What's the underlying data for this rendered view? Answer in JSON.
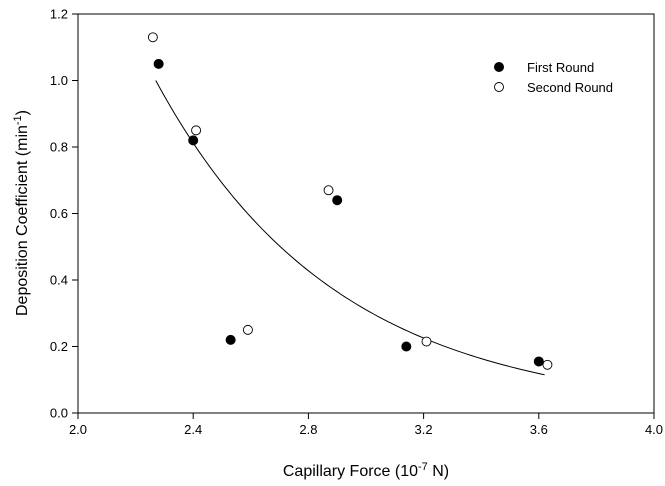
{
  "chart_data": {
    "type": "scatter",
    "xlabel": "Capillary Force (10",
    "xlabel_sup": "-7",
    "xlabel_tail": " N)",
    "ylabel": "Deposition Coefficient (min",
    "ylabel_sup": "-1",
    "ylabel_tail": ")",
    "xlim": [
      2.0,
      4.0
    ],
    "ylim": [
      0.0,
      1.2
    ],
    "xticks": [
      "2.0",
      "2.4",
      "2.8",
      "3.2",
      "3.6",
      "4.0"
    ],
    "yticks": [
      "0.0",
      "0.2",
      "0.4",
      "0.6",
      "0.8",
      "1.0",
      "1.2"
    ],
    "grid": false,
    "legend_position": "top-right",
    "series": [
      {
        "name": "First Round",
        "marker": "filled-circle",
        "color": "#000000",
        "points": [
          {
            "x": 2.28,
            "y": 1.05
          },
          {
            "x": 2.4,
            "y": 0.82
          },
          {
            "x": 2.53,
            "y": 0.22
          },
          {
            "x": 2.9,
            "y": 0.64
          },
          {
            "x": 3.14,
            "y": 0.2
          },
          {
            "x": 3.6,
            "y": 0.155
          }
        ]
      },
      {
        "name": "Second Round",
        "marker": "open-circle",
        "color": "#000000",
        "points": [
          {
            "x": 2.26,
            "y": 1.13
          },
          {
            "x": 2.41,
            "y": 0.85
          },
          {
            "x": 2.59,
            "y": 0.25
          },
          {
            "x": 2.87,
            "y": 0.67
          },
          {
            "x": 3.21,
            "y": 0.215
          },
          {
            "x": 3.63,
            "y": 0.145
          }
        ]
      }
    ],
    "fit_curve": {
      "type": "exponential",
      "color": "#000000",
      "points": [
        {
          "x": 2.27,
          "y": 1.0
        },
        {
          "x": 2.4,
          "y": 0.8
        },
        {
          "x": 2.6,
          "y": 0.58
        },
        {
          "x": 2.8,
          "y": 0.42
        },
        {
          "x": 3.0,
          "y": 0.3
        },
        {
          "x": 3.2,
          "y": 0.22
        },
        {
          "x": 3.4,
          "y": 0.16
        },
        {
          "x": 3.62,
          "y": 0.115
        }
      ]
    }
  }
}
